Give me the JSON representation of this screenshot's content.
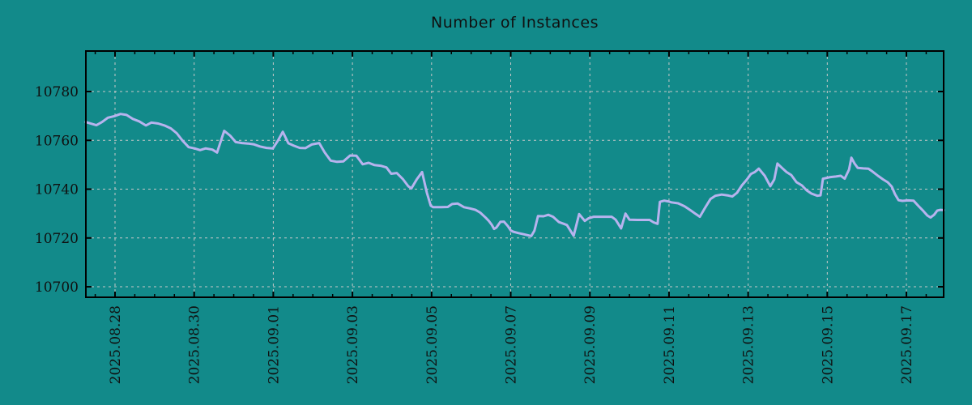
{
  "chart_data": {
    "type": "line",
    "title": "Number of Instances",
    "xlabel": "",
    "ylabel": "",
    "legend": {
      "show": false
    },
    "grid": {
      "show": true,
      "style": "dashed"
    },
    "colors": {
      "background": "#128a8a",
      "line": "#b7b3ee",
      "grid": "#c8c8c8",
      "axis": "#000000",
      "text": "#101010"
    },
    "x_axis": {
      "unit": "days since 2025.08.28",
      "range_days": [
        -0.737,
        20.941
      ],
      "minor_tick_step_days": 0.5,
      "major_ticks": [
        {
          "d": 0,
          "label": "2025.08.28"
        },
        {
          "d": 2,
          "label": "2025.08.30"
        },
        {
          "d": 4,
          "label": "2025.09.01"
        },
        {
          "d": 6,
          "label": "2025.09.03"
        },
        {
          "d": 8,
          "label": "2025.09.05"
        },
        {
          "d": 10,
          "label": "2025.09.07"
        },
        {
          "d": 12,
          "label": "2025.09.09"
        },
        {
          "d": 14,
          "label": "2025.09.11"
        },
        {
          "d": 16,
          "label": "2025.09.13"
        },
        {
          "d": 18,
          "label": "2025.09.15"
        },
        {
          "d": 20,
          "label": "2025.09.17"
        }
      ]
    },
    "y_axis": {
      "range": [
        10695.7,
        10796.6
      ],
      "ticks": [
        10700,
        10720,
        10740,
        10760,
        10780
      ]
    },
    "series": [
      {
        "color": "#b7b3ee",
        "points": [
          [
            -0.74,
            10767.5
          ],
          [
            -0.47,
            10766.2
          ],
          [
            -0.33,
            10767.5
          ],
          [
            -0.18,
            10769.3
          ],
          [
            -0.02,
            10769.9
          ],
          [
            0.14,
            10770.8
          ],
          [
            0.29,
            10770.4
          ],
          [
            0.45,
            10768.8
          ],
          [
            0.61,
            10767.8
          ],
          [
            0.78,
            10766.1
          ],
          [
            0.92,
            10767.3
          ],
          [
            1.09,
            10766.9
          ],
          [
            1.25,
            10766.1
          ],
          [
            1.41,
            10764.9
          ],
          [
            1.56,
            10762.9
          ],
          [
            1.7,
            10760.0
          ],
          [
            1.86,
            10757.2
          ],
          [
            2.01,
            10756.7
          ],
          [
            2.15,
            10756.0
          ],
          [
            2.29,
            10756.7
          ],
          [
            2.46,
            10756.2
          ],
          [
            2.58,
            10755.0
          ],
          [
            2.76,
            10763.9
          ],
          [
            2.91,
            10761.9
          ],
          [
            3.05,
            10759.3
          ],
          [
            3.21,
            10758.9
          ],
          [
            3.36,
            10758.7
          ],
          [
            3.5,
            10758.4
          ],
          [
            3.66,
            10757.5
          ],
          [
            3.83,
            10756.9
          ],
          [
            3.99,
            10756.7
          ],
          [
            4.12,
            10760.0
          ],
          [
            4.24,
            10763.5
          ],
          [
            4.38,
            10758.8
          ],
          [
            4.52,
            10757.8
          ],
          [
            4.67,
            10756.9
          ],
          [
            4.81,
            10756.8
          ],
          [
            4.97,
            10758.3
          ],
          [
            5.16,
            10758.9
          ],
          [
            5.3,
            10755.0
          ],
          [
            5.45,
            10751.7
          ],
          [
            5.61,
            10751.2
          ],
          [
            5.77,
            10751.4
          ],
          [
            5.94,
            10753.8
          ],
          [
            6.1,
            10753.7
          ],
          [
            6.26,
            10750.2
          ],
          [
            6.41,
            10750.8
          ],
          [
            6.55,
            10749.9
          ],
          [
            6.71,
            10749.6
          ],
          [
            6.86,
            10748.9
          ],
          [
            6.98,
            10746.3
          ],
          [
            7.12,
            10746.6
          ],
          [
            7.27,
            10744.2
          ],
          [
            7.41,
            10741.2
          ],
          [
            7.49,
            10740.3
          ],
          [
            7.62,
            10743.9
          ],
          [
            7.76,
            10747.0
          ],
          [
            7.88,
            10738.5
          ],
          [
            7.98,
            10733.2
          ],
          [
            8.04,
            10732.6
          ],
          [
            8.25,
            10732.6
          ],
          [
            8.41,
            10732.7
          ],
          [
            8.52,
            10733.9
          ],
          [
            8.66,
            10734.1
          ],
          [
            8.82,
            10732.6
          ],
          [
            8.97,
            10732.1
          ],
          [
            9.11,
            10731.5
          ],
          [
            9.23,
            10730.4
          ],
          [
            9.37,
            10728.3
          ],
          [
            9.44,
            10727.1
          ],
          [
            9.52,
            10725.4
          ],
          [
            9.58,
            10723.7
          ],
          [
            9.64,
            10724.3
          ],
          [
            9.74,
            10726.6
          ],
          [
            9.83,
            10726.7
          ],
          [
            9.93,
            10724.8
          ],
          [
            10.0,
            10723.1
          ],
          [
            10.06,
            10722.6
          ],
          [
            10.2,
            10722.0
          ],
          [
            10.34,
            10721.5
          ],
          [
            10.52,
            10720.8
          ],
          [
            10.6,
            10723.0
          ],
          [
            10.69,
            10729.0
          ],
          [
            10.83,
            10728.9
          ],
          [
            10.95,
            10729.5
          ],
          [
            11.07,
            10728.7
          ],
          [
            11.22,
            10726.5
          ],
          [
            11.34,
            10725.8
          ],
          [
            11.42,
            10725.3
          ],
          [
            11.59,
            10720.9
          ],
          [
            11.73,
            10729.8
          ],
          [
            11.87,
            10727.0
          ],
          [
            11.97,
            10728.1
          ],
          [
            12.1,
            10728.7
          ],
          [
            12.3,
            10728.7
          ],
          [
            12.55,
            10728.7
          ],
          [
            12.65,
            10727.5
          ],
          [
            12.79,
            10723.9
          ],
          [
            12.9,
            10730.0
          ],
          [
            13.0,
            10727.5
          ],
          [
            13.2,
            10727.4
          ],
          [
            13.51,
            10727.4
          ],
          [
            13.61,
            10726.4
          ],
          [
            13.71,
            10725.8
          ],
          [
            13.77,
            10734.8
          ],
          [
            13.88,
            10735.3
          ],
          [
            13.98,
            10735.0
          ],
          [
            14.06,
            10734.6
          ],
          [
            14.23,
            10734.2
          ],
          [
            14.39,
            10733.0
          ],
          [
            14.53,
            10731.5
          ],
          [
            14.68,
            10729.8
          ],
          [
            14.78,
            10728.7
          ],
          [
            14.92,
            10732.6
          ],
          [
            15.05,
            10736.0
          ],
          [
            15.17,
            10737.3
          ],
          [
            15.33,
            10737.8
          ],
          [
            15.5,
            10737.4
          ],
          [
            15.6,
            10737.0
          ],
          [
            15.72,
            10738.5
          ],
          [
            15.84,
            10741.5
          ],
          [
            15.97,
            10744.0
          ],
          [
            16.07,
            10746.2
          ],
          [
            16.17,
            10747.0
          ],
          [
            16.27,
            10748.4
          ],
          [
            16.42,
            10745.5
          ],
          [
            16.56,
            10741.2
          ],
          [
            16.66,
            10744.0
          ],
          [
            16.74,
            10750.5
          ],
          [
            16.87,
            10748.5
          ],
          [
            16.97,
            10747.0
          ],
          [
            17.09,
            10745.8
          ],
          [
            17.22,
            10742.9
          ],
          [
            17.36,
            10741.5
          ],
          [
            17.48,
            10739.5
          ],
          [
            17.6,
            10738.2
          ],
          [
            17.75,
            10737.3
          ],
          [
            17.83,
            10737.5
          ],
          [
            17.89,
            10744.3
          ],
          [
            18.06,
            10744.9
          ],
          [
            18.22,
            10745.2
          ],
          [
            18.34,
            10745.5
          ],
          [
            18.44,
            10744.3
          ],
          [
            18.55,
            10748.0
          ],
          [
            18.61,
            10752.9
          ],
          [
            18.69,
            10750.5
          ],
          [
            18.77,
            10748.7
          ],
          [
            18.91,
            10748.5
          ],
          [
            19.04,
            10748.4
          ],
          [
            19.16,
            10747.0
          ],
          [
            19.28,
            10745.5
          ],
          [
            19.41,
            10744.0
          ],
          [
            19.53,
            10742.8
          ],
          [
            19.63,
            10741.0
          ],
          [
            19.71,
            10738.0
          ],
          [
            19.8,
            10735.5
          ],
          [
            19.9,
            10735.2
          ],
          [
            20.04,
            10735.4
          ],
          [
            20.18,
            10735.3
          ],
          [
            20.31,
            10733.0
          ],
          [
            20.43,
            10731.0
          ],
          [
            20.53,
            10729.2
          ],
          [
            20.61,
            10728.4
          ],
          [
            20.7,
            10729.5
          ],
          [
            20.78,
            10731.2
          ],
          [
            20.86,
            10731.5
          ],
          [
            20.94,
            10731.4
          ]
        ]
      }
    ]
  }
}
